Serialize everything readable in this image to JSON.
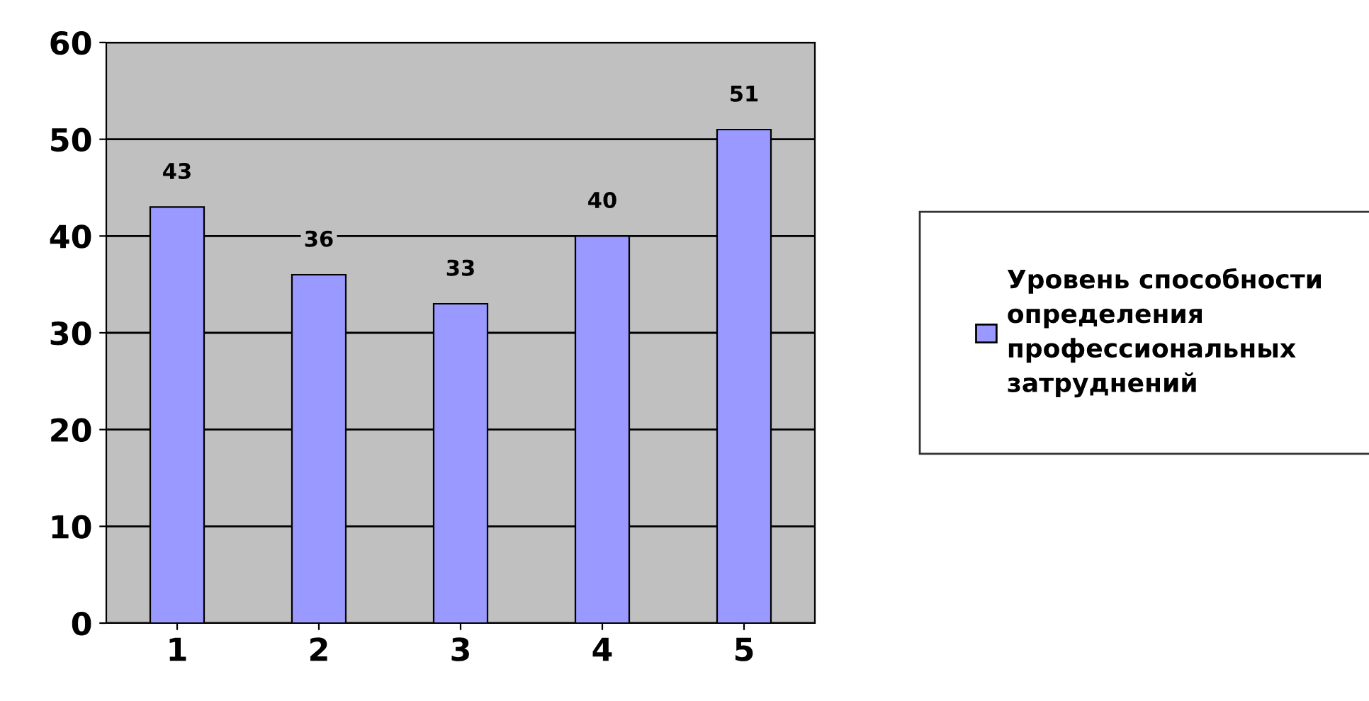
{
  "chart_data": {
    "type": "bar",
    "categories": [
      "1",
      "2",
      "3",
      "4",
      "5"
    ],
    "series": [
      {
        "name": "Уровень способности определения профессиональных затруднений",
        "color": "#9999ff",
        "values": [
          43,
          36,
          33,
          40,
          51
        ]
      }
    ],
    "ylim": [
      0,
      60
    ],
    "yticks": [
      0,
      10,
      20,
      30,
      40,
      50,
      60
    ],
    "grid": "y",
    "legend": "right",
    "data_labels": true
  }
}
